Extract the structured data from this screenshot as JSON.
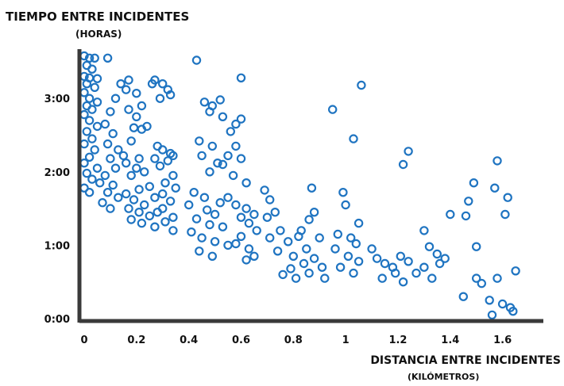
{
  "chart_data": {
    "type": "scatter",
    "title": "TIEMPO ENTRE INCIDENTES",
    "subtitle": "(HORAS)",
    "xlabel": "DISTANCIA ENTRE INCIDENTES",
    "xlabel_unit": "(KILÓMETROS)",
    "x_ticks": [
      {
        "value": 0,
        "label": "0"
      },
      {
        "value": 0.2,
        "label": "0.2"
      },
      {
        "value": 0.4,
        "label": "0.4"
      },
      {
        "value": 0.6,
        "label": "0.6"
      },
      {
        "value": 0.8,
        "label": "0.8"
      },
      {
        "value": 1.0,
        "label": "1"
      },
      {
        "value": 1.2,
        "label": "1.2"
      },
      {
        "value": 1.4,
        "label": "1.4"
      },
      {
        "value": 1.6,
        "label": "1.6"
      }
    ],
    "y_ticks": [
      {
        "value": 0,
        "label": "0:00"
      },
      {
        "value": 1,
        "label": "1:00"
      },
      {
        "value": 2,
        "label": "2:00"
      },
      {
        "value": 3,
        "label": "3:00"
      }
    ],
    "xlim": [
      0,
      1.75
    ],
    "ylim": [
      0,
      3.65
    ],
    "grid": false,
    "marker": "open-circle",
    "color": "#1f74c1",
    "axis_color": "#3a3a3a",
    "points": [
      [
        0.0,
        3.58
      ],
      [
        0.02,
        3.55
      ],
      [
        0.04,
        3.55
      ],
      [
        0.01,
        3.45
      ],
      [
        0.03,
        3.4
      ],
      [
        0.0,
        3.3
      ],
      [
        0.02,
        3.28
      ],
      [
        0.05,
        3.27
      ],
      [
        0.01,
        3.2
      ],
      [
        0.04,
        3.15
      ],
      [
        0.0,
        3.08
      ],
      [
        0.02,
        3.0
      ],
      [
        0.05,
        2.95
      ],
      [
        0.01,
        2.9
      ],
      [
        0.03,
        2.85
      ],
      [
        0.0,
        2.78
      ],
      [
        0.02,
        2.7
      ],
      [
        0.05,
        2.62
      ],
      [
        0.01,
        2.55
      ],
      [
        0.03,
        2.45
      ],
      [
        0.0,
        2.38
      ],
      [
        0.04,
        2.3
      ],
      [
        0.02,
        2.2
      ],
      [
        0.0,
        2.12
      ],
      [
        0.05,
        2.05
      ],
      [
        0.01,
        1.98
      ],
      [
        0.03,
        1.9
      ],
      [
        0.06,
        1.85
      ],
      [
        0.0,
        1.78
      ],
      [
        0.02,
        1.72
      ],
      [
        0.09,
        3.55
      ],
      [
        0.12,
        3.0
      ],
      [
        0.1,
        2.82
      ],
      [
        0.08,
        2.65
      ],
      [
        0.11,
        2.52
      ],
      [
        0.09,
        2.38
      ],
      [
        0.13,
        2.3
      ],
      [
        0.1,
        2.18
      ],
      [
        0.12,
        2.05
      ],
      [
        0.08,
        1.95
      ],
      [
        0.11,
        1.82
      ],
      [
        0.09,
        1.72
      ],
      [
        0.13,
        1.65
      ],
      [
        0.07,
        1.58
      ],
      [
        0.1,
        1.5
      ],
      [
        0.17,
        3.25
      ],
      [
        0.14,
        3.2
      ],
      [
        0.16,
        3.12
      ],
      [
        0.2,
        3.07
      ],
      [
        0.22,
        2.9
      ],
      [
        0.17,
        2.85
      ],
      [
        0.2,
        2.75
      ],
      [
        0.24,
        2.62
      ],
      [
        0.19,
        2.6
      ],
      [
        0.22,
        2.58
      ],
      [
        0.18,
        2.42
      ],
      [
        0.15,
        2.22
      ],
      [
        0.21,
        2.18
      ],
      [
        0.16,
        2.12
      ],
      [
        0.2,
        2.05
      ],
      [
        0.23,
        2.0
      ],
      [
        0.18,
        1.95
      ],
      [
        0.25,
        1.8
      ],
      [
        0.21,
        1.76
      ],
      [
        0.16,
        1.7
      ],
      [
        0.19,
        1.62
      ],
      [
        0.23,
        1.55
      ],
      [
        0.17,
        1.5
      ],
      [
        0.21,
        1.45
      ],
      [
        0.25,
        1.4
      ],
      [
        0.18,
        1.35
      ],
      [
        0.22,
        1.3
      ],
      [
        0.26,
        3.2
      ],
      [
        0.27,
        3.25
      ],
      [
        0.3,
        3.2
      ],
      [
        0.32,
        3.12
      ],
      [
        0.29,
        3.0
      ],
      [
        0.33,
        3.05
      ],
      [
        0.28,
        2.35
      ],
      [
        0.3,
        2.3
      ],
      [
        0.33,
        2.25
      ],
      [
        0.34,
        2.22
      ],
      [
        0.27,
        2.18
      ],
      [
        0.32,
        2.15
      ],
      [
        0.29,
        2.08
      ],
      [
        0.34,
        1.95
      ],
      [
        0.31,
        1.85
      ],
      [
        0.35,
        1.78
      ],
      [
        0.3,
        1.7
      ],
      [
        0.27,
        1.65
      ],
      [
        0.33,
        1.6
      ],
      [
        0.3,
        1.5
      ],
      [
        0.28,
        1.45
      ],
      [
        0.34,
        1.38
      ],
      [
        0.31,
        1.32
      ],
      [
        0.27,
        1.25
      ],
      [
        0.34,
        1.2
      ],
      [
        0.43,
        3.52
      ],
      [
        0.46,
        2.95
      ],
      [
        0.49,
        2.9
      ],
      [
        0.52,
        2.98
      ],
      [
        0.48,
        2.82
      ],
      [
        0.53,
        2.75
      ],
      [
        0.44,
        2.42
      ],
      [
        0.49,
        2.35
      ],
      [
        0.45,
        2.22
      ],
      [
        0.51,
        2.12
      ],
      [
        0.48,
        2.0
      ],
      [
        0.42,
        1.72
      ],
      [
        0.46,
        1.65
      ],
      [
        0.52,
        1.58
      ],
      [
        0.4,
        1.55
      ],
      [
        0.47,
        1.48
      ],
      [
        0.5,
        1.42
      ],
      [
        0.43,
        1.36
      ],
      [
        0.48,
        1.28
      ],
      [
        0.53,
        1.25
      ],
      [
        0.41,
        1.18
      ],
      [
        0.45,
        1.1
      ],
      [
        0.5,
        1.05
      ],
      [
        0.55,
        1.0
      ],
      [
        0.44,
        0.92
      ],
      [
        0.49,
        0.85
      ],
      [
        0.6,
        3.28
      ],
      [
        0.58,
        2.65
      ],
      [
        0.6,
        2.72
      ],
      [
        0.56,
        2.55
      ],
      [
        0.58,
        2.35
      ],
      [
        0.55,
        2.22
      ],
      [
        0.6,
        2.18
      ],
      [
        0.53,
        2.1
      ],
      [
        0.57,
        1.95
      ],
      [
        0.62,
        1.85
      ],
      [
        0.55,
        1.65
      ],
      [
        0.58,
        1.55
      ],
      [
        0.62,
        1.5
      ],
      [
        0.65,
        1.42
      ],
      [
        0.6,
        1.38
      ],
      [
        0.63,
        1.3
      ],
      [
        0.66,
        1.2
      ],
      [
        0.6,
        1.12
      ],
      [
        0.58,
        1.02
      ],
      [
        0.63,
        0.95
      ],
      [
        0.65,
        0.85
      ],
      [
        0.62,
        0.8
      ],
      [
        0.69,
        1.75
      ],
      [
        0.71,
        1.62
      ],
      [
        0.73,
        1.45
      ],
      [
        0.7,
        1.38
      ],
      [
        0.75,
        1.2
      ],
      [
        0.71,
        1.1
      ],
      [
        0.78,
        1.05
      ],
      [
        0.82,
        1.12
      ],
      [
        0.74,
        0.92
      ],
      [
        0.8,
        0.85
      ],
      [
        0.84,
        0.75
      ],
      [
        0.79,
        0.68
      ],
      [
        0.76,
        0.6
      ],
      [
        0.81,
        0.55
      ],
      [
        0.87,
        1.78
      ],
      [
        0.88,
        1.45
      ],
      [
        0.86,
        1.35
      ],
      [
        0.83,
        1.2
      ],
      [
        0.9,
        1.1
      ],
      [
        0.85,
        0.95
      ],
      [
        0.88,
        0.82
      ],
      [
        0.91,
        0.7
      ],
      [
        0.86,
        0.62
      ],
      [
        0.92,
        0.55
      ],
      [
        0.95,
        2.85
      ],
      [
        0.99,
        1.72
      ],
      [
        1.0,
        1.55
      ],
      [
        1.03,
        2.45
      ],
      [
        1.05,
        1.3
      ],
      [
        0.97,
        1.15
      ],
      [
        1.02,
        1.1
      ],
      [
        1.04,
        1.02
      ],
      [
        0.96,
        0.95
      ],
      [
        1.01,
        0.85
      ],
      [
        1.05,
        0.78
      ],
      [
        0.98,
        0.7
      ],
      [
        1.03,
        0.62
      ],
      [
        1.06,
        3.18
      ],
      [
        1.1,
        0.95
      ],
      [
        1.12,
        0.82
      ],
      [
        1.15,
        0.75
      ],
      [
        1.18,
        0.7
      ],
      [
        1.21,
        0.85
      ],
      [
        1.24,
        0.78
      ],
      [
        1.19,
        0.62
      ],
      [
        1.14,
        0.55
      ],
      [
        1.22,
        0.5
      ],
      [
        1.24,
        2.28
      ],
      [
        1.22,
        2.1
      ],
      [
        1.3,
        1.2
      ],
      [
        1.32,
        0.98
      ],
      [
        1.35,
        0.88
      ],
      [
        1.38,
        0.82
      ],
      [
        1.36,
        0.75
      ],
      [
        1.3,
        0.7
      ],
      [
        1.27,
        0.62
      ],
      [
        1.33,
        0.55
      ],
      [
        1.4,
        1.42
      ],
      [
        1.47,
        1.6
      ],
      [
        1.49,
        1.85
      ],
      [
        1.5,
        0.98
      ],
      [
        1.46,
        1.4
      ],
      [
        1.5,
        0.55
      ],
      [
        1.52,
        0.48
      ],
      [
        1.45,
        0.3
      ],
      [
        1.58,
        2.15
      ],
      [
        1.57,
        1.78
      ],
      [
        1.62,
        1.65
      ],
      [
        1.61,
        1.42
      ],
      [
        1.65,
        0.65
      ],
      [
        1.58,
        0.55
      ],
      [
        1.55,
        0.25
      ],
      [
        1.6,
        0.2
      ],
      [
        1.63,
        0.15
      ],
      [
        1.64,
        0.1
      ],
      [
        1.56,
        0.05
      ]
    ]
  }
}
